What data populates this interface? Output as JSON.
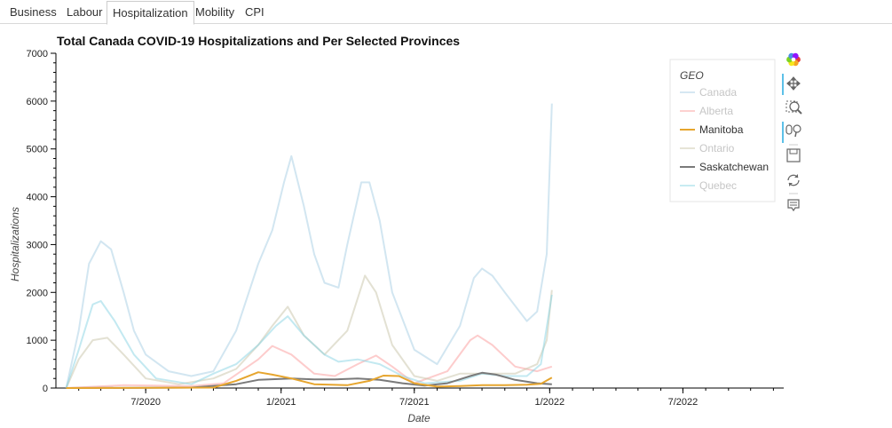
{
  "tabs": [
    {
      "label": "Business",
      "active": false
    },
    {
      "label": "Labour",
      "active": false
    },
    {
      "label": "Hospitalization",
      "active": true
    },
    {
      "label": "Mobility",
      "active": false
    },
    {
      "label": "CPI",
      "active": false
    }
  ],
  "toolbar": [
    "bokeh-logo-icon",
    "pan-icon",
    "box-zoom-icon",
    "wheel-zoom-icon",
    "save-icon",
    "reset-icon",
    "hover-icon"
  ],
  "chart_data": {
    "type": "line",
    "title": "Total Canada COVID-19 Hospitalizations and Per Selected Provinces",
    "xlabel": "Date",
    "ylabel": "Hospitalizations",
    "xlim": [
      "2020-03-01",
      "2022-11-15"
    ],
    "ylim": [
      0,
      7000
    ],
    "x_ticks": [
      "7/2020",
      "1/2021",
      "7/2021",
      "1/2022",
      "7/2022"
    ],
    "y_ticks": [
      "0",
      "1000",
      "2000",
      "3000",
      "4000",
      "5000",
      "6000",
      "7000"
    ],
    "legend": {
      "title": "GEO",
      "position": "top-right"
    },
    "series": [
      {
        "name": "Canada",
        "color": "#a6cee3",
        "dimmed": true,
        "points": [
          [
            "2020-03-15",
            0
          ],
          [
            "2020-04-01",
            1200
          ],
          [
            "2020-04-15",
            2600
          ],
          [
            "2020-05-01",
            3070
          ],
          [
            "2020-05-15",
            2900
          ],
          [
            "2020-06-01",
            2000
          ],
          [
            "2020-06-15",
            1200
          ],
          [
            "2020-07-01",
            700
          ],
          [
            "2020-08-01",
            350
          ],
          [
            "2020-09-01",
            250
          ],
          [
            "2020-10-01",
            350
          ],
          [
            "2020-11-01",
            1200
          ],
          [
            "2020-12-01",
            2600
          ],
          [
            "2020-12-20",
            3300
          ],
          [
            "2021-01-05",
            4300
          ],
          [
            "2021-01-15",
            4850
          ],
          [
            "2021-02-01",
            3800
          ],
          [
            "2021-02-15",
            2800
          ],
          [
            "2021-03-01",
            2200
          ],
          [
            "2021-03-20",
            2100
          ],
          [
            "2021-04-01",
            3000
          ],
          [
            "2021-04-20",
            4300
          ],
          [
            "2021-05-01",
            4300
          ],
          [
            "2021-05-15",
            3500
          ],
          [
            "2021-06-01",
            2000
          ],
          [
            "2021-07-01",
            800
          ],
          [
            "2021-08-01",
            500
          ],
          [
            "2021-09-01",
            1300
          ],
          [
            "2021-09-20",
            2300
          ],
          [
            "2021-10-01",
            2500
          ],
          [
            "2021-10-15",
            2350
          ],
          [
            "2021-11-01",
            2000
          ],
          [
            "2021-12-01",
            1400
          ],
          [
            "2021-12-15",
            1600
          ],
          [
            "2021-12-28",
            2800
          ],
          [
            "2022-01-04",
            5950
          ]
        ]
      },
      {
        "name": "Alberta",
        "color": "#fb9a99",
        "dimmed": true,
        "points": [
          [
            "2020-03-15",
            0
          ],
          [
            "2020-06-01",
            60
          ],
          [
            "2020-09-01",
            40
          ],
          [
            "2020-10-15",
            100
          ],
          [
            "2020-12-01",
            600
          ],
          [
            "2020-12-20",
            880
          ],
          [
            "2021-01-15",
            700
          ],
          [
            "2021-02-15",
            300
          ],
          [
            "2021-03-15",
            250
          ],
          [
            "2021-04-15",
            500
          ],
          [
            "2021-05-10",
            680
          ],
          [
            "2021-06-01",
            450
          ],
          [
            "2021-07-01",
            100
          ],
          [
            "2021-08-15",
            350
          ],
          [
            "2021-09-15",
            1000
          ],
          [
            "2021-09-25",
            1100
          ],
          [
            "2021-10-15",
            900
          ],
          [
            "2021-11-15",
            450
          ],
          [
            "2021-12-15",
            350
          ],
          [
            "2022-01-04",
            450
          ]
        ]
      },
      {
        "name": "Manitoba",
        "color": "#e6a52e",
        "dimmed": false,
        "points": [
          [
            "2020-03-15",
            0
          ],
          [
            "2020-10-01",
            10
          ],
          [
            "2020-11-01",
            150
          ],
          [
            "2020-12-01",
            330
          ],
          [
            "2020-12-20",
            280
          ],
          [
            "2021-01-15",
            200
          ],
          [
            "2021-02-15",
            80
          ],
          [
            "2021-04-01",
            60
          ],
          [
            "2021-05-01",
            150
          ],
          [
            "2021-05-20",
            260
          ],
          [
            "2021-06-10",
            250
          ],
          [
            "2021-07-01",
            100
          ],
          [
            "2021-08-01",
            30
          ],
          [
            "2021-09-01",
            40
          ],
          [
            "2021-10-01",
            60
          ],
          [
            "2021-11-01",
            60
          ],
          [
            "2021-12-01",
            70
          ],
          [
            "2021-12-20",
            90
          ],
          [
            "2022-01-04",
            220
          ]
        ]
      },
      {
        "name": "Ontario",
        "color": "#c8c4a8",
        "dimmed": true,
        "points": [
          [
            "2020-03-15",
            0
          ],
          [
            "2020-04-01",
            600
          ],
          [
            "2020-04-20",
            1000
          ],
          [
            "2020-05-10",
            1050
          ],
          [
            "2020-06-01",
            700
          ],
          [
            "2020-07-01",
            200
          ],
          [
            "2020-08-15",
            80
          ],
          [
            "2020-10-01",
            200
          ],
          [
            "2020-11-01",
            400
          ],
          [
            "2020-12-01",
            900
          ],
          [
            "2020-12-20",
            1300
          ],
          [
            "2021-01-10",
            1700
          ],
          [
            "2021-02-01",
            1100
          ],
          [
            "2021-03-01",
            700
          ],
          [
            "2021-04-01",
            1200
          ],
          [
            "2021-04-25",
            2350
          ],
          [
            "2021-05-10",
            2000
          ],
          [
            "2021-06-01",
            900
          ],
          [
            "2021-07-01",
            250
          ],
          [
            "2021-08-01",
            150
          ],
          [
            "2021-09-01",
            300
          ],
          [
            "2021-10-01",
            300
          ],
          [
            "2021-11-15",
            300
          ],
          [
            "2021-12-15",
            500
          ],
          [
            "2021-12-28",
            1000
          ],
          [
            "2022-01-04",
            2050
          ]
        ]
      },
      {
        "name": "Saskatchewan",
        "color": "#7a7a7a",
        "dimmed": false,
        "points": [
          [
            "2020-03-15",
            0
          ],
          [
            "2020-09-01",
            10
          ],
          [
            "2020-11-01",
            80
          ],
          [
            "2020-12-01",
            170
          ],
          [
            "2021-01-15",
            200
          ],
          [
            "2021-02-15",
            180
          ],
          [
            "2021-03-15",
            180
          ],
          [
            "2021-04-15",
            200
          ],
          [
            "2021-05-15",
            170
          ],
          [
            "2021-06-15",
            100
          ],
          [
            "2021-07-15",
            50
          ],
          [
            "2021-08-15",
            100
          ],
          [
            "2021-09-15",
            250
          ],
          [
            "2021-10-01",
            320
          ],
          [
            "2021-10-20",
            280
          ],
          [
            "2021-11-15",
            170
          ],
          [
            "2021-12-15",
            100
          ],
          [
            "2022-01-04",
            80
          ]
        ]
      },
      {
        "name": "Quebec",
        "color": "#87d4e4",
        "dimmed": true,
        "points": [
          [
            "2020-03-15",
            0
          ],
          [
            "2020-04-01",
            800
          ],
          [
            "2020-04-20",
            1750
          ],
          [
            "2020-05-01",
            1820
          ],
          [
            "2020-05-20",
            1400
          ],
          [
            "2020-06-15",
            700
          ],
          [
            "2020-07-15",
            200
          ],
          [
            "2020-09-01",
            80
          ],
          [
            "2020-10-01",
            300
          ],
          [
            "2020-11-01",
            500
          ],
          [
            "2020-12-01",
            900
          ],
          [
            "2020-12-25",
            1300
          ],
          [
            "2021-01-10",
            1500
          ],
          [
            "2021-02-01",
            1100
          ],
          [
            "2021-03-01",
            700
          ],
          [
            "2021-03-20",
            550
          ],
          [
            "2021-04-15",
            600
          ],
          [
            "2021-05-15",
            500
          ],
          [
            "2021-06-15",
            250
          ],
          [
            "2021-07-15",
            100
          ],
          [
            "2021-09-01",
            150
          ],
          [
            "2021-10-01",
            300
          ],
          [
            "2021-11-01",
            250
          ],
          [
            "2021-12-01",
            250
          ],
          [
            "2021-12-20",
            500
          ],
          [
            "2022-01-04",
            1950
          ]
        ]
      }
    ]
  }
}
